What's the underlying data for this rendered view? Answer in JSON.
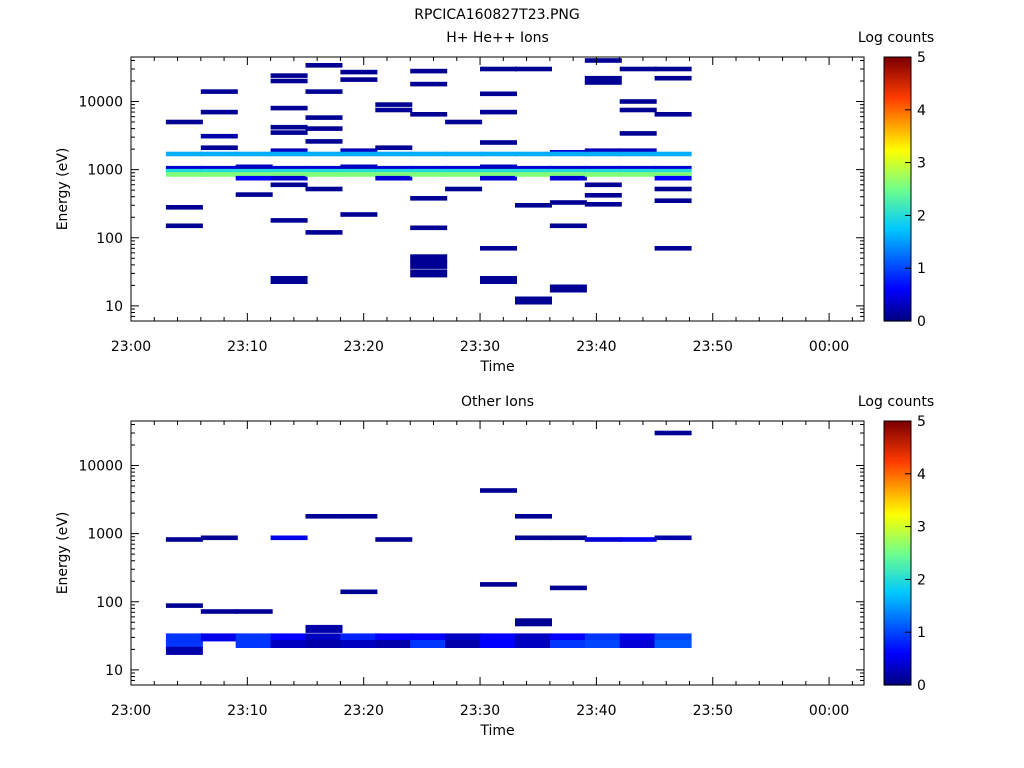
{
  "figure_title": "RPCICA160827T23.PNG",
  "chart_data": [
    {
      "type": "heatmap",
      "title": "H+ He++ Ions",
      "xlabel": "Time",
      "ylabel": "Energy (eV)",
      "x_ticks": [
        "23:00",
        "23:10",
        "23:20",
        "23:30",
        "23:40",
        "23:50",
        "00:00"
      ],
      "x_range_minutes": [
        0,
        63
      ],
      "y_scale": "log",
      "y_range": [
        6,
        45000
      ],
      "y_ticks": [
        "10",
        "100",
        "1000",
        "10000"
      ],
      "grid": false,
      "colorbar": {
        "label": "Log counts",
        "range": [
          0,
          5
        ],
        "ticks": [
          "0",
          "1",
          "2",
          "3",
          "4",
          "5"
        ]
      },
      "cells": [
        {
          "t": 3,
          "e": 5000,
          "c": 0.1
        },
        {
          "t": 3,
          "e": 1700,
          "c": 1.6
        },
        {
          "t": 3,
          "e": 1050,
          "c": 0.4
        },
        {
          "t": 3,
          "e": 950,
          "c": 2.0
        },
        {
          "t": 3,
          "e": 850,
          "c": 2.6
        },
        {
          "t": 3,
          "e": 280,
          "c": 0.1
        },
        {
          "t": 3,
          "e": 150,
          "c": 0.1
        },
        {
          "t": 6,
          "e": 14000,
          "c": 0.1
        },
        {
          "t": 6,
          "e": 7000,
          "c": 0.1
        },
        {
          "t": 6,
          "e": 3100,
          "c": 0.2
        },
        {
          "t": 6,
          "e": 2100,
          "c": 0.1
        },
        {
          "t": 6,
          "e": 1700,
          "c": 1.6
        },
        {
          "t": 6,
          "e": 1050,
          "c": 0.4
        },
        {
          "t": 6,
          "e": 950,
          "c": 2.0
        },
        {
          "t": 6,
          "e": 850,
          "c": 2.6
        },
        {
          "t": 9,
          "e": 1700,
          "c": 1.6
        },
        {
          "t": 9,
          "e": 1100,
          "c": 0.3
        },
        {
          "t": 9,
          "e": 950,
          "c": 2.0
        },
        {
          "t": 9,
          "e": 850,
          "c": 2.6
        },
        {
          "t": 9,
          "e": 750,
          "c": 0.6
        },
        {
          "t": 9,
          "e": 430,
          "c": 0.1
        },
        {
          "t": 12,
          "e": 24000,
          "c": 0.1
        },
        {
          "t": 12,
          "e": 20000,
          "c": 0.1
        },
        {
          "t": 12,
          "e": 8000,
          "c": 0.1
        },
        {
          "t": 12,
          "e": 4200,
          "c": 0.1
        },
        {
          "t": 12,
          "e": 3500,
          "c": 0.1
        },
        {
          "t": 12,
          "e": 1900,
          "c": 0.3
        },
        {
          "t": 12,
          "e": 1700,
          "c": 1.6
        },
        {
          "t": 12,
          "e": 1050,
          "c": 0.4
        },
        {
          "t": 12,
          "e": 950,
          "c": 2.0
        },
        {
          "t": 12,
          "e": 850,
          "c": 2.6
        },
        {
          "t": 12,
          "e": 750,
          "c": 0.4
        },
        {
          "t": 12,
          "e": 600,
          "c": 0.1
        },
        {
          "t": 12,
          "e": 180,
          "c": 0.1
        },
        {
          "t": 12,
          "e": 24,
          "c": 0.1
        },
        {
          "t": 15,
          "e": 34000,
          "c": 0.1
        },
        {
          "t": 15,
          "e": 14000,
          "c": 0.1
        },
        {
          "t": 15,
          "e": 5800,
          "c": 0.1
        },
        {
          "t": 15,
          "e": 4000,
          "c": 0.1
        },
        {
          "t": 15,
          "e": 2600,
          "c": 0.1
        },
        {
          "t": 15,
          "e": 1700,
          "c": 1.6
        },
        {
          "t": 15,
          "e": 1050,
          "c": 0.4
        },
        {
          "t": 15,
          "e": 950,
          "c": 2.0
        },
        {
          "t": 15,
          "e": 850,
          "c": 2.6
        },
        {
          "t": 15,
          "e": 520,
          "c": 0.1
        },
        {
          "t": 15,
          "e": 120,
          "c": 0.1
        },
        {
          "t": 18,
          "e": 27000,
          "c": 0.1
        },
        {
          "t": 18,
          "e": 21000,
          "c": 0.1
        },
        {
          "t": 18,
          "e": 1900,
          "c": 0.3
        },
        {
          "t": 18,
          "e": 1700,
          "c": 1.6
        },
        {
          "t": 18,
          "e": 1100,
          "c": 0.3
        },
        {
          "t": 18,
          "e": 950,
          "c": 2.0
        },
        {
          "t": 18,
          "e": 850,
          "c": 2.6
        },
        {
          "t": 18,
          "e": 220,
          "c": 0.1
        },
        {
          "t": 21,
          "e": 9000,
          "c": 0.1
        },
        {
          "t": 21,
          "e": 7500,
          "c": 0.1
        },
        {
          "t": 21,
          "e": 2100,
          "c": 0.1
        },
        {
          "t": 21,
          "e": 1700,
          "c": 1.6
        },
        {
          "t": 21,
          "e": 1050,
          "c": 0.4
        },
        {
          "t": 21,
          "e": 950,
          "c": 2.0
        },
        {
          "t": 21,
          "e": 850,
          "c": 2.6
        },
        {
          "t": 21,
          "e": 750,
          "c": 0.4
        },
        {
          "t": 24,
          "e": 28000,
          "c": 0.1
        },
        {
          "t": 24,
          "e": 18000,
          "c": 0.1
        },
        {
          "t": 24,
          "e": 6500,
          "c": 0.1
        },
        {
          "t": 24,
          "e": 1700,
          "c": 1.6
        },
        {
          "t": 24,
          "e": 1050,
          "c": 0.4
        },
        {
          "t": 24,
          "e": 950,
          "c": 2.0
        },
        {
          "t": 24,
          "e": 850,
          "c": 2.6
        },
        {
          "t": 24,
          "e": 380,
          "c": 0.1
        },
        {
          "t": 24,
          "e": 140,
          "c": 0.1
        },
        {
          "t": 24,
          "e": 50,
          "c": 0.1
        },
        {
          "t": 24,
          "e": 40,
          "c": 0.1
        },
        {
          "t": 24,
          "e": 30,
          "c": 0.1
        },
        {
          "t": 27,
          "e": 5000,
          "c": 0.1
        },
        {
          "t": 27,
          "e": 1700,
          "c": 1.6
        },
        {
          "t": 27,
          "e": 1050,
          "c": 0.4
        },
        {
          "t": 27,
          "e": 950,
          "c": 2.0
        },
        {
          "t": 27,
          "e": 850,
          "c": 2.6
        },
        {
          "t": 27,
          "e": 520,
          "c": 0.1
        },
        {
          "t": 30,
          "e": 30000,
          "c": 0.1
        },
        {
          "t": 30,
          "e": 13000,
          "c": 0.1
        },
        {
          "t": 30,
          "e": 7000,
          "c": 0.1
        },
        {
          "t": 30,
          "e": 2500,
          "c": 0.1
        },
        {
          "t": 30,
          "e": 1700,
          "c": 1.6
        },
        {
          "t": 30,
          "e": 1100,
          "c": 0.3
        },
        {
          "t": 30,
          "e": 950,
          "c": 2.0
        },
        {
          "t": 30,
          "e": 850,
          "c": 2.6
        },
        {
          "t": 30,
          "e": 750,
          "c": 0.4
        },
        {
          "t": 30,
          "e": 70,
          "c": 0.1
        },
        {
          "t": 30,
          "e": 24,
          "c": 0.1
        },
        {
          "t": 33,
          "e": 30000,
          "c": 0.1
        },
        {
          "t": 33,
          "e": 1700,
          "c": 1.6
        },
        {
          "t": 33,
          "e": 1050,
          "c": 0.4
        },
        {
          "t": 33,
          "e": 950,
          "c": 2.0
        },
        {
          "t": 33,
          "e": 850,
          "c": 2.6
        },
        {
          "t": 33,
          "e": 300,
          "c": 0.1
        },
        {
          "t": 33,
          "e": 12,
          "c": 0.1
        },
        {
          "t": 36,
          "e": 1800,
          "c": 0.4
        },
        {
          "t": 36,
          "e": 1700,
          "c": 1.6
        },
        {
          "t": 36,
          "e": 1050,
          "c": 0.4
        },
        {
          "t": 36,
          "e": 950,
          "c": 2.0
        },
        {
          "t": 36,
          "e": 850,
          "c": 2.6
        },
        {
          "t": 36,
          "e": 750,
          "c": 0.4
        },
        {
          "t": 36,
          "e": 330,
          "c": 0.1
        },
        {
          "t": 36,
          "e": 150,
          "c": 0.1
        },
        {
          "t": 36,
          "e": 18,
          "c": 0.1
        },
        {
          "t": 39,
          "e": 40000,
          "c": 0.1
        },
        {
          "t": 39,
          "e": 22000,
          "c": 0.1
        },
        {
          "t": 39,
          "e": 19000,
          "c": 0.1
        },
        {
          "t": 39,
          "e": 1900,
          "c": 0.3
        },
        {
          "t": 39,
          "e": 1700,
          "c": 1.6
        },
        {
          "t": 39,
          "e": 1050,
          "c": 0.4
        },
        {
          "t": 39,
          "e": 950,
          "c": 2.0
        },
        {
          "t": 39,
          "e": 850,
          "c": 2.6
        },
        {
          "t": 39,
          "e": 600,
          "c": 0.1
        },
        {
          "t": 39,
          "e": 420,
          "c": 0.1
        },
        {
          "t": 39,
          "e": 310,
          "c": 0.1
        },
        {
          "t": 42,
          "e": 30000,
          "c": 0.1
        },
        {
          "t": 42,
          "e": 10000,
          "c": 0.1
        },
        {
          "t": 42,
          "e": 7500,
          "c": 0.1
        },
        {
          "t": 42,
          "e": 3400,
          "c": 0.1
        },
        {
          "t": 42,
          "e": 1900,
          "c": 0.3
        },
        {
          "t": 42,
          "e": 1700,
          "c": 1.6
        },
        {
          "t": 42,
          "e": 1050,
          "c": 0.4
        },
        {
          "t": 42,
          "e": 950,
          "c": 2.0
        },
        {
          "t": 42,
          "e": 850,
          "c": 2.6
        },
        {
          "t": 45,
          "e": 30000,
          "c": 0.1
        },
        {
          "t": 45,
          "e": 22000,
          "c": 0.1
        },
        {
          "t": 45,
          "e": 6500,
          "c": 0.1
        },
        {
          "t": 45,
          "e": 1700,
          "c": 1.6
        },
        {
          "t": 45,
          "e": 1050,
          "c": 0.4
        },
        {
          "t": 45,
          "e": 950,
          "c": 2.0
        },
        {
          "t": 45,
          "e": 850,
          "c": 2.6
        },
        {
          "t": 45,
          "e": 750,
          "c": 0.6
        },
        {
          "t": 45,
          "e": 520,
          "c": 0.1
        },
        {
          "t": 45,
          "e": 350,
          "c": 0.1
        },
        {
          "t": 45,
          "e": 70,
          "c": 0.1
        }
      ]
    },
    {
      "type": "heatmap",
      "title": "Other Ions",
      "xlabel": "Time",
      "ylabel": "Energy (eV)",
      "x_ticks": [
        "23:00",
        "23:10",
        "23:20",
        "23:30",
        "23:40",
        "23:50",
        "00:00"
      ],
      "x_range_minutes": [
        0,
        63
      ],
      "y_scale": "log",
      "y_range": [
        6,
        45000
      ],
      "y_ticks": [
        "10",
        "100",
        "1000",
        "10000"
      ],
      "grid": false,
      "colorbar": {
        "label": "Log counts",
        "range": [
          0,
          5
        ],
        "ticks": [
          "0",
          "1",
          "2",
          "3",
          "4",
          "5"
        ]
      },
      "cells": [
        {
          "t": 3,
          "e": 820,
          "c": 0.1
        },
        {
          "t": 3,
          "e": 88,
          "c": 0.1
        },
        {
          "t": 3,
          "e": 30,
          "c": 0.9
        },
        {
          "t": 3,
          "e": 24,
          "c": 0.9
        },
        {
          "t": 3,
          "e": 19,
          "c": 0.2
        },
        {
          "t": 6,
          "e": 870,
          "c": 0.1
        },
        {
          "t": 6,
          "e": 72,
          "c": 0.1
        },
        {
          "t": 6,
          "e": 30,
          "c": 0.5
        },
        {
          "t": 9,
          "e": 72,
          "c": 0.1
        },
        {
          "t": 9,
          "e": 30,
          "c": 0.9
        },
        {
          "t": 9,
          "e": 24,
          "c": 0.9
        },
        {
          "t": 12,
          "e": 870,
          "c": 0.5
        },
        {
          "t": 12,
          "e": 30,
          "c": 0.6
        },
        {
          "t": 12,
          "e": 24,
          "c": 0.3
        },
        {
          "t": 15,
          "e": 1800,
          "c": 0.1
        },
        {
          "t": 15,
          "e": 40,
          "c": 0.2
        },
        {
          "t": 15,
          "e": 30,
          "c": 0.3
        },
        {
          "t": 15,
          "e": 24,
          "c": 0.2
        },
        {
          "t": 18,
          "e": 1800,
          "c": 0.1
        },
        {
          "t": 18,
          "e": 140,
          "c": 0.1
        },
        {
          "t": 18,
          "e": 30,
          "c": 0.8
        },
        {
          "t": 18,
          "e": 24,
          "c": 0.3
        },
        {
          "t": 21,
          "e": 820,
          "c": 0.1
        },
        {
          "t": 21,
          "e": 30,
          "c": 0.6
        },
        {
          "t": 21,
          "e": 24,
          "c": 0.2
        },
        {
          "t": 24,
          "e": 30,
          "c": 0.6
        },
        {
          "t": 24,
          "e": 24,
          "c": 0.9
        },
        {
          "t": 27,
          "e": 30,
          "c": 0.3
        },
        {
          "t": 27,
          "e": 24,
          "c": 0.2
        },
        {
          "t": 30,
          "e": 4300,
          "c": 0.1
        },
        {
          "t": 30,
          "e": 180,
          "c": 0.1
        },
        {
          "t": 30,
          "e": 30,
          "c": 0.6
        },
        {
          "t": 30,
          "e": 24,
          "c": 0.6
        },
        {
          "t": 33,
          "e": 1800,
          "c": 0.1
        },
        {
          "t": 33,
          "e": 870,
          "c": 0.1
        },
        {
          "t": 33,
          "e": 50,
          "c": 0.1
        },
        {
          "t": 33,
          "e": 30,
          "c": 0.3
        },
        {
          "t": 33,
          "e": 24,
          "c": 0.3
        },
        {
          "t": 36,
          "e": 870,
          "c": 0.1
        },
        {
          "t": 36,
          "e": 160,
          "c": 0.1
        },
        {
          "t": 36,
          "e": 30,
          "c": 0.6
        },
        {
          "t": 36,
          "e": 24,
          "c": 0.9
        },
        {
          "t": 39,
          "e": 820,
          "c": 0.4
        },
        {
          "t": 39,
          "e": 30,
          "c": 0.9
        },
        {
          "t": 39,
          "e": 24,
          "c": 1.0
        },
        {
          "t": 42,
          "e": 820,
          "c": 0.5
        },
        {
          "t": 42,
          "e": 30,
          "c": 0.5
        },
        {
          "t": 42,
          "e": 24,
          "c": 0.4
        },
        {
          "t": 45,
          "e": 30000,
          "c": 0.1
        },
        {
          "t": 45,
          "e": 870,
          "c": 0.2
        },
        {
          "t": 45,
          "e": 30,
          "c": 1.0
        },
        {
          "t": 45,
          "e": 24,
          "c": 1.1
        }
      ]
    }
  ]
}
